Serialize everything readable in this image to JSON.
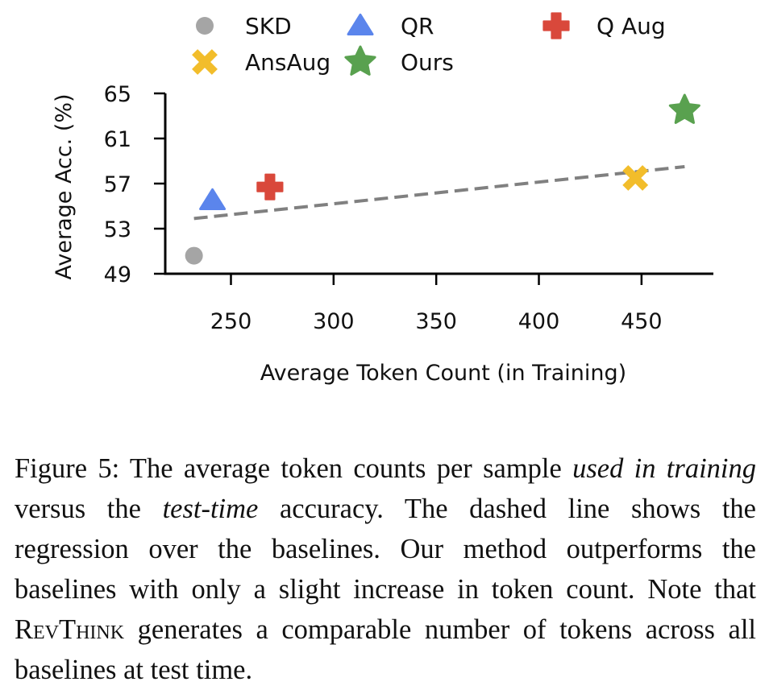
{
  "chart_data": {
    "type": "scatter",
    "title": "",
    "xlabel": "Average Token Count (in Training)",
    "ylabel": "Average Acc. (%)",
    "xlim": [
      218,
      485
    ],
    "ylim": [
      49,
      65
    ],
    "xticks": [
      250,
      300,
      350,
      400,
      450
    ],
    "yticks": [
      49,
      53,
      57,
      61,
      65
    ],
    "series": [
      {
        "name": "SKD",
        "x": 232,
        "y": 50.6,
        "marker": "circle",
        "color": "#a5a5a5"
      },
      {
        "name": "QR",
        "x": 241,
        "y": 55.5,
        "marker": "triangle",
        "color": "#5b85ec"
      },
      {
        "name": "Q Aug",
        "x": 269,
        "y": 56.7,
        "marker": "plus",
        "color": "#d9483b"
      },
      {
        "name": "AnsAug",
        "x": 447,
        "y": 57.5,
        "marker": "x",
        "color": "#f2bd2b"
      },
      {
        "name": "Ours",
        "x": 471,
        "y": 63.5,
        "marker": "star",
        "color": "#59a14f"
      }
    ],
    "regression": {
      "x": [
        232,
        471
      ],
      "y": [
        53.9,
        58.5
      ],
      "style": "dashed",
      "color": "#808080"
    },
    "legend": {
      "position": "top",
      "columns": 3
    }
  },
  "caption": {
    "label": "Figure 5:",
    "t1": " The average token counts per sample ",
    "em1": "used in training",
    "t2": " versus the ",
    "em2": "test-time",
    "t3": " accuracy. The dashed line shows the regression over the baselines. Our method outperforms the baselines with only a slight increase in token count. Note that ",
    "method": "RevThink",
    "t4": " generates a comparable number of tokens across all baselines at test time."
  }
}
